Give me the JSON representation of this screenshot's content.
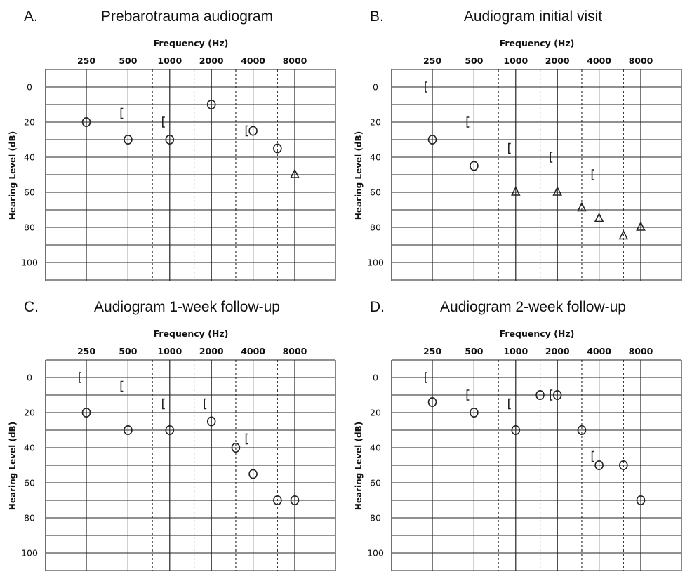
{
  "chart_data": [
    {
      "type": "scatter",
      "panel_letter": "A.",
      "title": "Prebarotrauma audiogram",
      "xlabel": "Frequency (Hz)",
      "ylabel": "Hearing Level (dB)",
      "x_ticks": [
        "250",
        "500",
        "1000",
        "2000",
        "4000",
        "8000"
      ],
      "y_ticks": [
        "0",
        "20",
        "40",
        "60",
        "80",
        "100"
      ],
      "ylim": [
        -10,
        110
      ],
      "grid": true,
      "series": [
        {
          "marker": "circle",
          "points": [
            [
              250,
              20
            ],
            [
              500,
              30
            ],
            [
              1000,
              30
            ],
            [
              2000,
              10
            ],
            [
              4000,
              25
            ],
            [
              6000,
              35
            ]
          ]
        },
        {
          "marker": "triangle",
          "points": [
            [
              8000,
              50
            ]
          ]
        },
        {
          "marker": "bracket",
          "points": [
            [
              500,
              15
            ],
            [
              1000,
              20
            ],
            [
              4000,
              25
            ]
          ]
        }
      ]
    },
    {
      "type": "scatter",
      "panel_letter": "B.",
      "title": "Audiogram initial visit",
      "xlabel": "Frequency (Hz)",
      "ylabel": "Hearing Level (dB)",
      "x_ticks": [
        "250",
        "500",
        "1000",
        "2000",
        "4000",
        "8000"
      ],
      "y_ticks": [
        "0",
        "20",
        "40",
        "60",
        "80",
        "100"
      ],
      "ylim": [
        -10,
        110
      ],
      "grid": true,
      "series": [
        {
          "marker": "circle",
          "points": [
            [
              250,
              30
            ],
            [
              500,
              45
            ]
          ]
        },
        {
          "marker": "triangle",
          "points": [
            [
              1000,
              60
            ],
            [
              2000,
              60
            ],
            [
              3000,
              69
            ],
            [
              4000,
              75
            ],
            [
              6000,
              85
            ],
            [
              8000,
              80
            ]
          ]
        },
        {
          "marker": "bracket",
          "points": [
            [
              250,
              0
            ],
            [
              500,
              20
            ],
            [
              1000,
              35
            ],
            [
              2000,
              40
            ],
            [
              4000,
              50
            ]
          ]
        }
      ]
    },
    {
      "type": "scatter",
      "panel_letter": "C.",
      "title": "Audiogram 1-week follow-up",
      "xlabel": "Frequency (Hz)",
      "ylabel": "Hearing Level (dB)",
      "x_ticks": [
        "250",
        "500",
        "1000",
        "2000",
        "4000",
        "8000"
      ],
      "y_ticks": [
        "0",
        "20",
        "40",
        "60",
        "80",
        "100"
      ],
      "ylim": [
        -10,
        110
      ],
      "grid": true,
      "series": [
        {
          "marker": "circle",
          "points": [
            [
              250,
              20
            ],
            [
              500,
              30
            ],
            [
              1000,
              30
            ],
            [
              2000,
              25
            ],
            [
              3000,
              40
            ],
            [
              4000,
              55
            ],
            [
              6000,
              70
            ],
            [
              8000,
              70
            ]
          ]
        },
        {
          "marker": "bracket",
          "points": [
            [
              250,
              0
            ],
            [
              500,
              5
            ],
            [
              1000,
              15
            ],
            [
              2000,
              15
            ],
            [
              4000,
              35
            ]
          ]
        }
      ]
    },
    {
      "type": "scatter",
      "panel_letter": "D.",
      "title": "Audiogram 2-week follow-up",
      "xlabel": "Frequency (Hz)",
      "ylabel": "Hearing Level (dB)",
      "x_ticks": [
        "250",
        "500",
        "1000",
        "2000",
        "4000",
        "8000"
      ],
      "y_ticks": [
        "0",
        "20",
        "40",
        "60",
        "80",
        "100"
      ],
      "ylim": [
        -10,
        110
      ],
      "grid": true,
      "series": [
        {
          "marker": "circle",
          "points": [
            [
              250,
              14
            ],
            [
              500,
              20
            ],
            [
              1000,
              30
            ],
            [
              1500,
              10
            ],
            [
              2000,
              10
            ],
            [
              3000,
              30
            ],
            [
              4000,
              50
            ],
            [
              6000,
              50
            ],
            [
              8000,
              70
            ]
          ]
        },
        {
          "marker": "bracket",
          "points": [
            [
              250,
              0
            ],
            [
              500,
              10
            ],
            [
              1000,
              15
            ],
            [
              2000,
              10
            ],
            [
              4000,
              45
            ]
          ]
        }
      ]
    }
  ]
}
